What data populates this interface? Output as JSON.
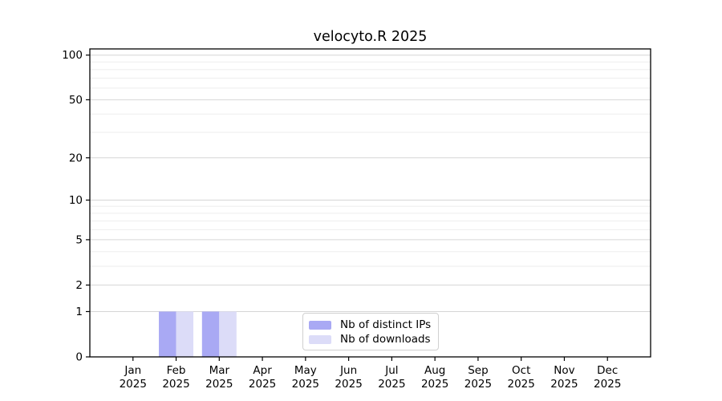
{
  "title": "velocyto.R 2025",
  "chart_data": {
    "type": "bar",
    "title": "velocyto.R 2025",
    "categories": [
      "Jan 2025",
      "Feb 2025",
      "Mar 2025",
      "Apr 2025",
      "May 2025",
      "Jun 2025",
      "Jul 2025",
      "Aug 2025",
      "Sep 2025",
      "Oct 2025",
      "Nov 2025",
      "Dec 2025"
    ],
    "series": [
      {
        "name": "Nb of distinct IPs",
        "color": "#a9a9f4",
        "values": [
          0,
          1,
          1,
          0,
          0,
          0,
          0,
          0,
          0,
          0,
          0,
          0
        ]
      },
      {
        "name": "Nb of downloads",
        "color": "#dcdcf8",
        "values": [
          0,
          1,
          1,
          0,
          0,
          0,
          0,
          0,
          0,
          0,
          0,
          0
        ]
      }
    ],
    "xlabel": "",
    "ylabel": "",
    "yscale": "log1p",
    "ylim": [
      0,
      110
    ],
    "yticks": [
      0,
      1,
      2,
      5,
      10,
      20,
      50,
      100
    ],
    "yticks_minor": [
      3,
      4,
      6,
      7,
      8,
      9,
      30,
      40,
      60,
      70,
      80,
      90
    ],
    "grid": true,
    "legend_position": "inside-bottom-center",
    "colors": {
      "grid_major": "#d6d6d6",
      "grid_minor": "#eeeeee",
      "axis": "#000000",
      "text": "#000000",
      "background": "#ffffff"
    }
  }
}
